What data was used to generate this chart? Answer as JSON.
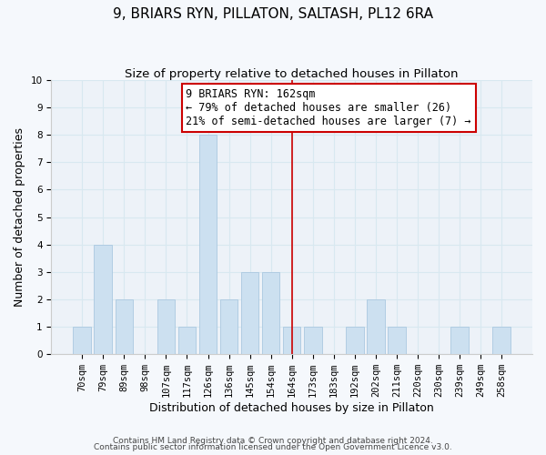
{
  "title": "9, BRIARS RYN, PILLATON, SALTASH, PL12 6RA",
  "subtitle": "Size of property relative to detached houses in Pillaton",
  "xlabel": "Distribution of detached houses by size in Pillaton",
  "ylabel": "Number of detached properties",
  "bar_labels": [
    "70sqm",
    "79sqm",
    "89sqm",
    "98sqm",
    "107sqm",
    "117sqm",
    "126sqm",
    "136sqm",
    "145sqm",
    "154sqm",
    "164sqm",
    "173sqm",
    "183sqm",
    "192sqm",
    "202sqm",
    "211sqm",
    "220sqm",
    "230sqm",
    "239sqm",
    "249sqm",
    "258sqm"
  ],
  "bar_values": [
    1,
    4,
    2,
    0,
    2,
    1,
    8,
    2,
    3,
    3,
    1,
    1,
    0,
    1,
    2,
    1,
    0,
    0,
    1,
    0,
    1
  ],
  "bar_color": "#cce0f0",
  "bar_edge_color": "#aac8e0",
  "grid_color": "#d8e8f0",
  "background_color": "#f5f8fc",
  "plot_bg_color": "#edf2f8",
  "marker_line_index": 10,
  "marker_line_color": "#cc0000",
  "ylim": [
    0,
    10
  ],
  "yticks": [
    0,
    1,
    2,
    3,
    4,
    5,
    6,
    7,
    8,
    9,
    10
  ],
  "annotation_title": "9 BRIARS RYN: 162sqm",
  "annotation_line1": "← 79% of detached houses are smaller (26)",
  "annotation_line2": "21% of semi-detached houses are larger (7) →",
  "annotation_box_color": "#ffffff",
  "annotation_box_edge": "#cc0000",
  "footer_line1": "Contains HM Land Registry data © Crown copyright and database right 2024.",
  "footer_line2": "Contains public sector information licensed under the Open Government Licence v3.0.",
  "title_fontsize": 11,
  "subtitle_fontsize": 9.5,
  "axis_label_fontsize": 9,
  "tick_fontsize": 7.5,
  "annotation_fontsize": 8.5,
  "footer_fontsize": 6.5
}
